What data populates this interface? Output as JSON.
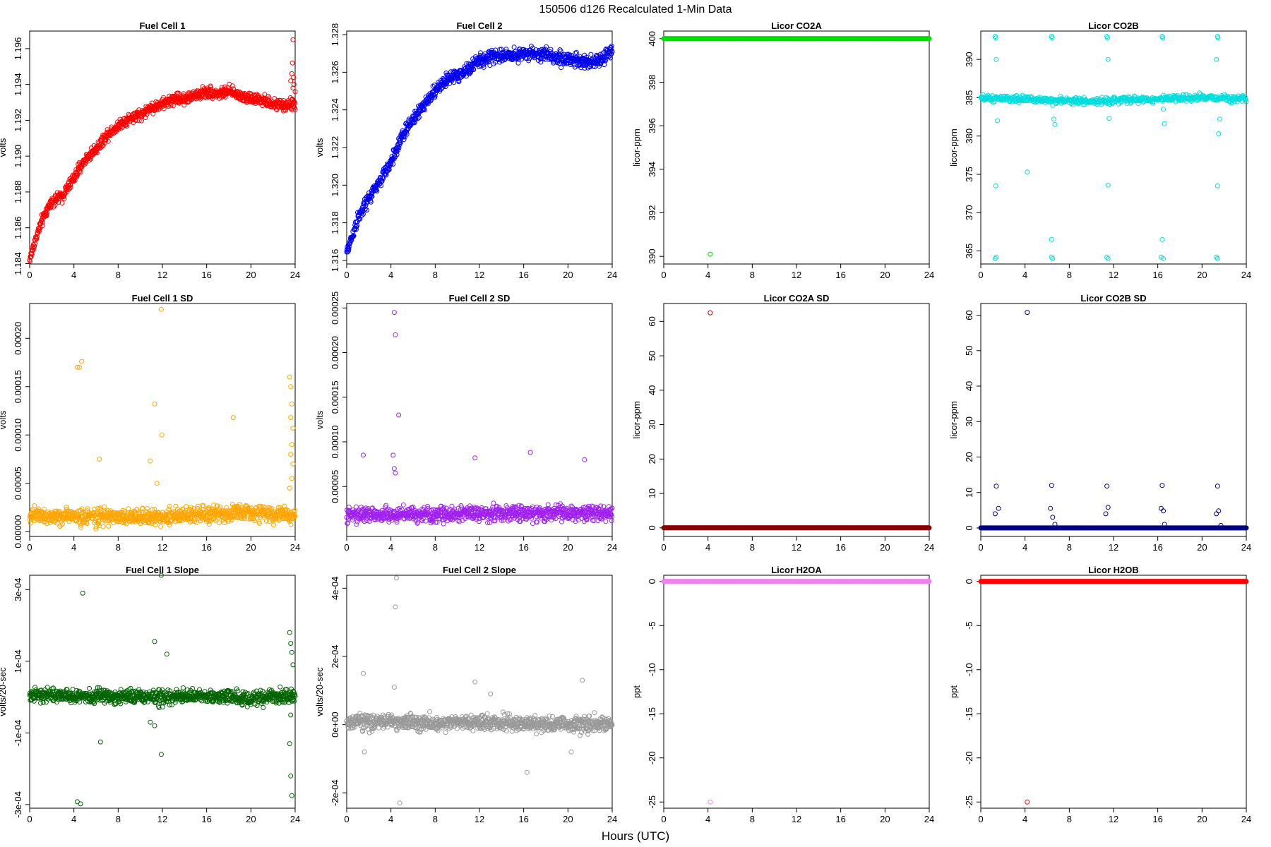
{
  "figure": {
    "title": "150506   d126   Recalculated 1-Min Data",
    "xlabel": "Hours (UTC)"
  },
  "chart_data": [
    {
      "id": "fc1",
      "type": "scatter",
      "title": "Fuel Cell 1",
      "ylabel": "volts",
      "color": "#ff0000",
      "xlim": [
        0,
        24
      ],
      "ylim": [
        1.18398,
        1.19698
      ],
      "xticks": [
        0,
        4,
        8,
        12,
        16,
        20,
        24
      ],
      "yticks": [
        1.184,
        1.186,
        1.188,
        1.19,
        1.192,
        1.194,
        1.196
      ],
      "yticklabels": [
        "1.184",
        "1.186",
        "1.188",
        "1.190",
        "1.192",
        "1.194",
        "1.196"
      ],
      "trend": [
        [
          0,
          1.1842
        ],
        [
          0.5,
          1.1853
        ],
        [
          1,
          1.1862
        ],
        [
          1.5,
          1.1869
        ],
        [
          2,
          1.1875
        ],
        [
          3,
          1.1878
        ],
        [
          3.5,
          1.1883
        ],
        [
          4,
          1.1888
        ],
        [
          5,
          1.1898
        ],
        [
          6,
          1.1904
        ],
        [
          7,
          1.1912
        ],
        [
          8,
          1.1917
        ],
        [
          9,
          1.1921
        ],
        [
          10,
          1.1923
        ],
        [
          11,
          1.1927
        ],
        [
          12,
          1.1929
        ],
        [
          13,
          1.1932
        ],
        [
          14,
          1.1932
        ],
        [
          15,
          1.1934
        ],
        [
          16,
          1.1936
        ],
        [
          17,
          1.1935
        ],
        [
          18,
          1.1936
        ],
        [
          19,
          1.1934
        ],
        [
          20,
          1.1932
        ],
        [
          21,
          1.1931
        ],
        [
          22,
          1.1929
        ],
        [
          23,
          1.1928
        ],
        [
          23.5,
          1.1929
        ]
      ],
      "noise": 0.00022,
      "density": 900,
      "extra_points": [
        [
          23.6,
          1.1942
        ],
        [
          23.7,
          1.1946
        ],
        [
          23.75,
          1.1952
        ],
        [
          23.8,
          1.1938
        ],
        [
          23.85,
          1.1944
        ],
        [
          23.9,
          1.194
        ],
        [
          24,
          1.1936
        ],
        [
          23.8,
          1.1965
        ]
      ]
    },
    {
      "id": "fc2",
      "type": "scatter",
      "title": "Fuel Cell 2",
      "ylabel": "volts",
      "color": "#0000ee",
      "xlim": [
        0,
        24
      ],
      "ylim": [
        1.31581,
        1.32819
      ],
      "xticks": [
        0,
        4,
        8,
        12,
        16,
        20,
        24
      ],
      "yticks": [
        1.316,
        1.318,
        1.32,
        1.322,
        1.324,
        1.326,
        1.328
      ],
      "yticklabels": [
        "1.316",
        "1.318",
        "1.320",
        "1.322",
        "1.324",
        "1.326",
        "1.328"
      ],
      "trend": [
        [
          0,
          1.3164
        ],
        [
          1,
          1.3182
        ],
        [
          2,
          1.3193
        ],
        [
          3,
          1.3202
        ],
        [
          4,
          1.3212
        ],
        [
          5,
          1.3226
        ],
        [
          6,
          1.3235
        ],
        [
          7,
          1.3243
        ],
        [
          8,
          1.325
        ],
        [
          9,
          1.3256
        ],
        [
          10,
          1.3258
        ],
        [
          11,
          1.3262
        ],
        [
          12,
          1.3266
        ],
        [
          13,
          1.3268
        ],
        [
          14,
          1.3269
        ],
        [
          15,
          1.3269
        ],
        [
          16,
          1.327
        ],
        [
          17,
          1.327
        ],
        [
          18,
          1.3269
        ],
        [
          19,
          1.3268
        ],
        [
          20,
          1.3267
        ],
        [
          21,
          1.3266
        ],
        [
          22,
          1.3266
        ],
        [
          23,
          1.3266
        ],
        [
          24,
          1.3272
        ]
      ],
      "noise": 0.00025,
      "density": 900,
      "extra_points": []
    },
    {
      "id": "co2a",
      "type": "scatter",
      "title": "Licor CO2A",
      "ylabel": "licor-ppm",
      "color": "#00dd00",
      "xlim": [
        0,
        24
      ],
      "ylim": [
        389.65,
        400.35
      ],
      "xticks": [
        0,
        4,
        8,
        12,
        16,
        20,
        24
      ],
      "yticks": [
        390,
        392,
        394,
        396,
        398,
        400
      ],
      "yticklabels": [
        "390",
        "392",
        "394",
        "396",
        "398",
        "400"
      ],
      "trend": [
        [
          0,
          400
        ],
        [
          24,
          400
        ]
      ],
      "noise": 0,
      "density": 500,
      "extra_points": [
        [
          4.2,
          390.1
        ]
      ]
    },
    {
      "id": "co2b",
      "type": "scatter",
      "title": "Licor CO2B",
      "ylabel": "licor-ppm",
      "color": "#00dddd",
      "xlim": [
        0,
        24
      ],
      "ylim": [
        363.3,
        393.7
      ],
      "xticks": [
        0,
        4,
        8,
        12,
        16,
        20,
        24
      ],
      "yticks": [
        365,
        370,
        375,
        380,
        385,
        390
      ],
      "yticklabels": [
        "365",
        "370",
        "375",
        "380",
        "385",
        "390"
      ],
      "trend": [
        [
          0,
          384.9
        ],
        [
          4,
          384.8
        ],
        [
          8,
          384.6
        ],
        [
          10,
          384.5
        ],
        [
          12,
          384.7
        ],
        [
          16,
          384.8
        ],
        [
          20,
          385.0
        ],
        [
          24,
          384.9
        ]
      ],
      "noise": 0.3,
      "density": 600,
      "extra_points": [
        [
          1.3,
          393
        ],
        [
          1.35,
          392.8
        ],
        [
          1.4,
          390
        ],
        [
          1.5,
          382
        ],
        [
          1.35,
          373.5
        ],
        [
          1.4,
          364.2
        ],
        [
          1.3,
          364
        ],
        [
          6.4,
          393
        ],
        [
          6.45,
          392.8
        ],
        [
          6.5,
          384
        ],
        [
          6.6,
          382.2
        ],
        [
          6.7,
          381.5
        ],
        [
          6.4,
          366.5
        ],
        [
          6.4,
          364.2
        ],
        [
          6.5,
          364
        ],
        [
          4.2,
          375.3
        ],
        [
          11.4,
          393
        ],
        [
          11.45,
          392.8
        ],
        [
          11.5,
          390
        ],
        [
          11.6,
          382.3
        ],
        [
          11.5,
          373.6
        ],
        [
          11.4,
          364.2
        ],
        [
          11.5,
          364
        ],
        [
          16.4,
          393
        ],
        [
          16.45,
          392.8
        ],
        [
          16.5,
          383.5
        ],
        [
          16.6,
          381.6
        ],
        [
          16.4,
          366.5
        ],
        [
          16.3,
          364.2
        ],
        [
          16.5,
          364
        ],
        [
          21.4,
          393
        ],
        [
          21.45,
          392.8
        ],
        [
          21.3,
          390
        ],
        [
          21.6,
          382.2
        ],
        [
          21.5,
          380.3
        ],
        [
          21.4,
          373.5
        ],
        [
          21.3,
          364.2
        ],
        [
          21.4,
          364
        ]
      ]
    },
    {
      "id": "fc1sd",
      "type": "scatter",
      "title": "Fuel Cell 1 SD",
      "ylabel": "volts",
      "color": "#ffa500",
      "xlim": [
        0,
        24
      ],
      "ylim": [
        -5e-06,
        0.000236
      ],
      "xticks": [
        0,
        4,
        8,
        12,
        16,
        20,
        24
      ],
      "yticks": [
        0,
        5e-05,
        0.0001,
        0.00015,
        0.0002
      ],
      "yticklabels": [
        "0.00000",
        "0.00005",
        "0.00010",
        "0.00015",
        "0.00020"
      ],
      "trend": [
        [
          0,
          1.6e-05
        ],
        [
          12,
          1.5e-05
        ],
        [
          16,
          1.8e-05
        ],
        [
          20,
          2e-05
        ],
        [
          24,
          1.6e-05
        ]
      ],
      "noise": 6e-06,
      "density": 900,
      "extra_points": [
        [
          4.3,
          0.00017
        ],
        [
          4.5,
          0.00017
        ],
        [
          4.7,
          0.000176
        ],
        [
          6.3,
          7.5e-05
        ],
        [
          10.9,
          7.3e-05
        ],
        [
          11.3,
          0.000132
        ],
        [
          11.9,
          0.00023
        ],
        [
          11.95,
          0.0001
        ],
        [
          11.5,
          5e-05
        ],
        [
          18.4,
          0.000118
        ],
        [
          23.5,
          0.00016
        ],
        [
          23.6,
          0.00015
        ],
        [
          23.7,
          0.000132
        ],
        [
          23.6,
          0.000118
        ],
        [
          23.8,
          0.000107
        ],
        [
          23.7,
          9e-05
        ],
        [
          23.6,
          8e-05
        ],
        [
          23.8,
          7e-05
        ],
        [
          23.7,
          5.5e-05
        ],
        [
          23.5,
          4.5e-05
        ]
      ]
    },
    {
      "id": "fc2sd",
      "type": "scatter",
      "title": "Fuel Cell 2 SD",
      "ylabel": "volts",
      "color": "#a020f0",
      "xlim": [
        0,
        24
      ],
      "ylim": [
        -6e-06,
        0.000255
      ],
      "xticks": [
        0,
        4,
        8,
        12,
        16,
        20,
        24
      ],
      "yticks": [
        5e-05,
        0.0001,
        0.00015,
        0.0002,
        0.00025
      ],
      "yticklabels": [
        "0.00005",
        "0.00010",
        "0.00015",
        "0.00020",
        "0.00025"
      ],
      "trend": [
        [
          0,
          1.8e-05
        ],
        [
          8,
          1.9e-05
        ],
        [
          16,
          2e-05
        ],
        [
          24,
          2e-05
        ]
      ],
      "noise": 6e-06,
      "density": 900,
      "extra_points": [
        [
          1.5,
          8.5e-05
        ],
        [
          4.3,
          0.000245
        ],
        [
          4.4,
          0.00022
        ],
        [
          4.7,
          0.00013
        ],
        [
          4.2,
          8.5e-05
        ],
        [
          4.3,
          7e-05
        ],
        [
          4.4,
          6.5e-05
        ],
        [
          11.6,
          8.2e-05
        ],
        [
          16.6,
          8.8e-05
        ],
        [
          21.5,
          8e-05
        ]
      ]
    },
    {
      "id": "co2asd",
      "type": "scatter",
      "title": "Licor CO2A SD",
      "ylabel": "licor-ppm",
      "color": "#8b0000",
      "xlim": [
        0,
        24
      ],
      "ylim": [
        -2.5,
        65.2
      ],
      "xticks": [
        0,
        4,
        8,
        12,
        16,
        20,
        24
      ],
      "yticks": [
        0,
        10,
        20,
        30,
        40,
        50,
        60
      ],
      "yticklabels": [
        "0",
        "10",
        "20",
        "30",
        "40",
        "50",
        "60"
      ],
      "trend": [
        [
          0,
          0
        ],
        [
          24,
          0
        ]
      ],
      "noise": 0,
      "density": 500,
      "extra_points": [
        [
          4.2,
          62.5
        ]
      ]
    },
    {
      "id": "co2bsd",
      "type": "scatter",
      "title": "Licor CO2B SD",
      "ylabel": "licor-ppm",
      "color": "#000080",
      "xlim": [
        0,
        24
      ],
      "ylim": [
        -2.4,
        63.3
      ],
      "xticks": [
        0,
        4,
        8,
        12,
        16,
        20,
        24
      ],
      "yticks": [
        0,
        10,
        20,
        30,
        40,
        50,
        60
      ],
      "yticklabels": [
        "0",
        "10",
        "20",
        "30",
        "40",
        "50",
        "60"
      ],
      "trend": [
        [
          0,
          0
        ],
        [
          24,
          0
        ]
      ],
      "noise": 0,
      "density": 500,
      "extra_points": [
        [
          4.2,
          60.8
        ],
        [
          1.4,
          11.8
        ],
        [
          1.3,
          4
        ],
        [
          1.6,
          5.5
        ],
        [
          6.4,
          12
        ],
        [
          6.3,
          5.5
        ],
        [
          6.5,
          3
        ],
        [
          6.7,
          1
        ],
        [
          11.4,
          11.8
        ],
        [
          11.3,
          4
        ],
        [
          11.5,
          5.8
        ],
        [
          16.4,
          12
        ],
        [
          16.3,
          5.5
        ],
        [
          16.5,
          4.8
        ],
        [
          16.6,
          1
        ],
        [
          21.4,
          11.8
        ],
        [
          21.3,
          4
        ],
        [
          21.5,
          4.8
        ],
        [
          21.7,
          0.7
        ]
      ]
    },
    {
      "id": "fc1slope",
      "type": "scatter",
      "title": "Fuel Cell 1 Slope",
      "ylabel": "volts/20-sec",
      "color": "#006400",
      "xlim": [
        0,
        24
      ],
      "ylim": [
        -0.00031,
        0.00034
      ],
      "xticks": [
        0,
        4,
        8,
        12,
        16,
        20,
        24
      ],
      "yticks": [
        -0.0003,
        -0.0001,
        0.0001,
        0.0003
      ],
      "yticklabels": [
        "-3e-04",
        "-1e-04",
        "1e-04",
        "3e-04"
      ],
      "trend": [
        [
          0,
          5e-06
        ],
        [
          12,
          0
        ],
        [
          24,
          0
        ]
      ],
      "noise": 1.4e-05,
      "density": 900,
      "extra_points": [
        [
          4.3,
          -0.000292
        ],
        [
          4.6,
          -0.000298
        ],
        [
          4.8,
          0.00029
        ],
        [
          6.4,
          -0.000125
        ],
        [
          11.3,
          0.000155
        ],
        [
          11.9,
          0.00034
        ],
        [
          12.4,
          0.00012
        ],
        [
          11.9,
          -0.00016
        ],
        [
          10.9,
          -7e-05
        ],
        [
          11.3,
          -8e-05
        ],
        [
          23.5,
          0.00018
        ],
        [
          23.6,
          0.00015
        ],
        [
          23.7,
          0.000125
        ],
        [
          23.8,
          9e-05
        ],
        [
          23.5,
          -0.00013
        ],
        [
          23.6,
          -0.00022
        ],
        [
          23.7,
          -0.000275
        ],
        [
          23.6,
          -5e-05
        ]
      ]
    },
    {
      "id": "fc2slope",
      "type": "scatter",
      "title": "Fuel Cell 2 Slope",
      "ylabel": "volts/20-sec",
      "color": "#999999",
      "xlim": [
        0,
        24
      ],
      "ylim": [
        -0.000245,
        0.000438
      ],
      "xticks": [
        0,
        4,
        8,
        12,
        16,
        20,
        24
      ],
      "yticks": [
        -0.0002,
        0,
        0.0002,
        0.0004
      ],
      "yticklabels": [
        "-2e-04",
        "0e+00",
        "2e-04",
        "4e-04"
      ],
      "trend": [
        [
          0,
          8e-06
        ],
        [
          12,
          5e-06
        ],
        [
          24,
          0
        ]
      ],
      "noise": 1.6e-05,
      "density": 900,
      "extra_points": [
        [
          4.5,
          0.00043
        ],
        [
          4.4,
          0.000345
        ],
        [
          1.5,
          0.00015
        ],
        [
          4.3,
          0.00011
        ],
        [
          4.8,
          -0.00023
        ],
        [
          11.6,
          0.000125
        ],
        [
          13,
          9e-05
        ],
        [
          16.3,
          -0.00014
        ],
        [
          21.3,
          0.00013
        ],
        [
          1.6,
          -8e-05
        ],
        [
          20.3,
          -8e-05
        ]
      ]
    },
    {
      "id": "h2oa",
      "type": "scatter",
      "title": "Licor H2OA",
      "ylabel": "ppt",
      "color": "#ee82ee",
      "xlim": [
        0,
        24
      ],
      "ylim": [
        -25.7,
        0.7
      ],
      "xticks": [
        0,
        4,
        8,
        12,
        16,
        20,
        24
      ],
      "yticks": [
        0,
        -5,
        -10,
        -15,
        -20,
        -25
      ],
      "yticklabels": [
        "0",
        "-5",
        "-10",
        "-15",
        "-20",
        "-25"
      ],
      "trend": [
        [
          0,
          0
        ],
        [
          24,
          0
        ]
      ],
      "noise": 0,
      "density": 500,
      "extra_points": [
        [
          4.2,
          -25
        ]
      ]
    },
    {
      "id": "h2ob",
      "type": "scatter",
      "title": "Licor H2OB",
      "ylabel": "ppt",
      "color": "#ff0000",
      "xlim": [
        0,
        24
      ],
      "ylim": [
        -25.7,
        0.7
      ],
      "xticks": [
        0,
        4,
        8,
        12,
        16,
        20,
        24
      ],
      "yticks": [
        0,
        -5,
        -10,
        -15,
        -20,
        -25
      ],
      "yticklabels": [
        "0",
        "-5",
        "-10",
        "-15",
        "-20",
        "-25"
      ],
      "trend": [
        [
          0,
          0
        ],
        [
          24,
          0
        ]
      ],
      "noise": 0,
      "density": 500,
      "extra_points": [
        [
          4.2,
          -25
        ]
      ]
    }
  ]
}
